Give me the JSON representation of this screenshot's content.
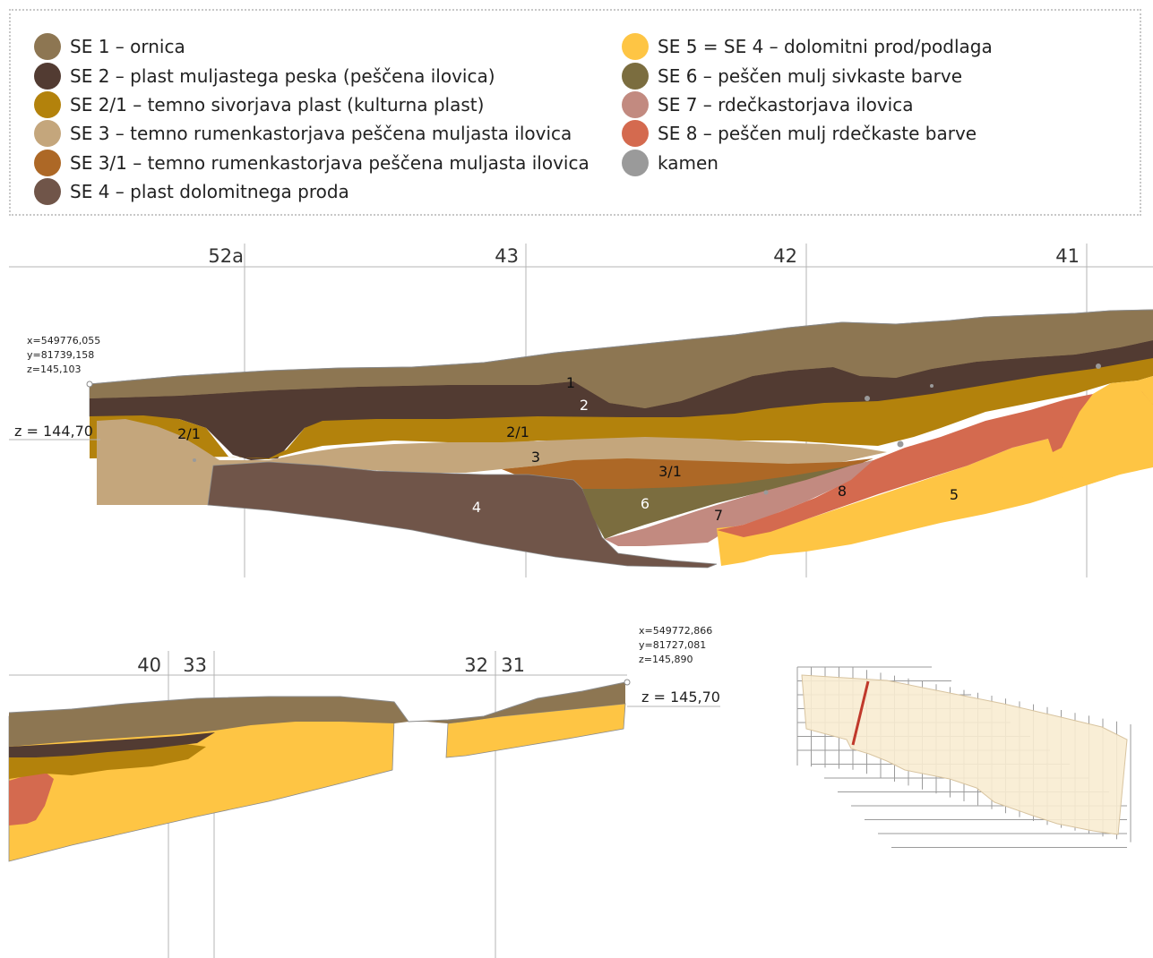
{
  "legend": {
    "left": [
      {
        "label": "SE 1 – ornica",
        "color": "#8d7652",
        "icon": "ornica-swatch"
      },
      {
        "label": "SE 2 – plast muljastega peska (peščena ilovica)",
        "color": "#523b32",
        "icon": "muljasti-pesek-swatch"
      },
      {
        "label": "SE 2/1 – temno sivorjava plast (kulturna plast)",
        "color": "#b3820c",
        "icon": "kulturna-plast-swatch"
      },
      {
        "label": "SE 3 – temno rumenkastorjava peščena muljasta ilovica",
        "color": "#c4a67c",
        "icon": "rumenkastorjava-ilovica-swatch"
      },
      {
        "label": "SE 3/1 – temno rumenkastorjava peščena muljasta ilovica",
        "color": "#ad6826",
        "icon": "rumenkastorjava-ilovica-2-swatch"
      },
      {
        "label": "SE 4 – plast dolomitnega proda",
        "color": "#705549",
        "icon": "dolomitni-prod-swatch"
      }
    ],
    "right": [
      {
        "label": "SE 5 = SE 4 – dolomitni prod/podlaga",
        "color": "#fec544",
        "icon": "podlaga-swatch"
      },
      {
        "label": "SE 6 – peščen mulj sivkaste barve",
        "color": "#7b6d3f",
        "icon": "sivkasti-mulj-swatch"
      },
      {
        "label": "SE 7 – rdečkastorjava ilovica",
        "color": "#c28a80",
        "icon": "rdeckastorjava-ilovica-swatch"
      },
      {
        "label": "SE 8 – peščen mulj rdečkaste barve",
        "color": "#d46a4f",
        "icon": "rdeckasti-mulj-swatch"
      },
      {
        "label": "kamen",
        "color": "#9a9a9a",
        "icon": "kamen-swatch"
      }
    ]
  },
  "upper_section": {
    "grid_labels": [
      "52a",
      "43",
      "42",
      "41"
    ],
    "point_coords": [
      "x=549776,055",
      "y=81739,158",
      "z=145,103"
    ],
    "datum": "z = 144,70",
    "layer_labels": [
      "1",
      "2",
      "2/1",
      "2/1",
      "3",
      "3/1",
      "4",
      "6",
      "7",
      "8",
      "5"
    ]
  },
  "lower_section": {
    "grid_labels": [
      "40",
      "33",
      "32",
      "31"
    ],
    "point_coords": [
      "x=549772,866",
      "y=81727,081",
      "z=145,890"
    ],
    "datum": "z = 145,70"
  }
}
